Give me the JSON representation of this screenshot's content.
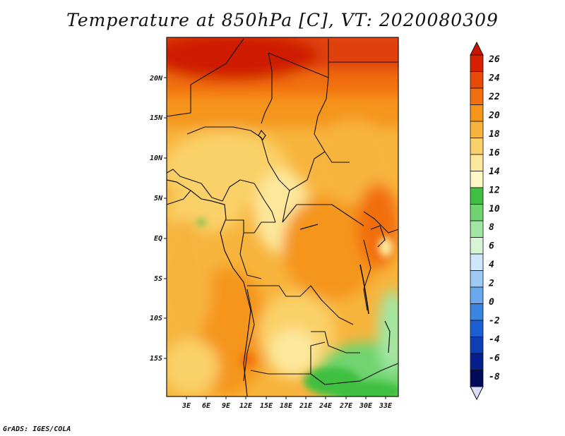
{
  "title": "Temperature at 850hPa [C], VT: 2020080309",
  "credit": "GrADS: IGES/COLA",
  "map": {
    "lat_ticks": [
      "20N",
      "15N",
      "10N",
      "5N",
      "EQ",
      "5S",
      "10S",
      "15S"
    ],
    "lon_ticks": [
      "3E",
      "6E",
      "9E",
      "12E",
      "15E",
      "18E",
      "21E",
      "24E",
      "27E",
      "30E",
      "33E"
    ]
  },
  "colorbar": {
    "labels": [
      "26",
      "24",
      "22",
      "20",
      "18",
      "16",
      "14",
      "12",
      "10",
      "8",
      "6",
      "4",
      "2",
      "0",
      "-2",
      "-4",
      "-6",
      "-8"
    ],
    "colors_top_to_bottom": [
      "#d62000",
      "#e84a0a",
      "#f26e10",
      "#f5951a",
      "#f7b43c",
      "#fad068",
      "#fde79b",
      "#fff7c4",
      "#3fbf3f",
      "#6fd46f",
      "#a3e6a3",
      "#d6f5d6",
      "#cfe6fb",
      "#9ccaf5",
      "#6aa9ed",
      "#3a85e0",
      "#1a60d2",
      "#0d3fb4",
      "#061f8c",
      "#000a5a"
    ],
    "over_color": "#c81400",
    "under_color": "#dcdcff"
  }
}
